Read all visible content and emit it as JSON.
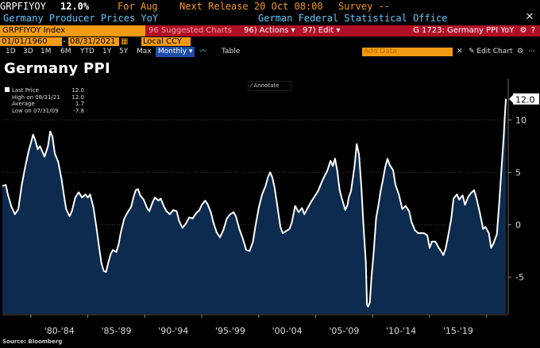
{
  "header": {
    "ticker": "GRPFIYOY",
    "last_value": "12.0%",
    "period": "For Aug",
    "next_release": "Next Release 20 Oct 08:00",
    "survey": "Survey --",
    "series_desc": "Germany Producer Prices YoY",
    "source": "German Federal Statistical Office"
  },
  "command_bar": {
    "security": "GRPFIYOY Index",
    "suggested": "96 Suggested Charts",
    "actions": "96) Actions ▾",
    "edit": "97) Edit ▾",
    "chart_id": "G 1723: Germany PPI YoY"
  },
  "date_range": {
    "start": "01/01/1960",
    "end": "08/31/2021",
    "currency": "Local CCY"
  },
  "toolbar": {
    "periods": [
      "1D",
      "3D",
      "1M",
      "6M",
      "YTD",
      "1Y",
      "5Y",
      "Max"
    ],
    "frequency": "Monthly ▾",
    "table_label": "Table",
    "add_data_placeholder": "Add Data",
    "edit_chart": "✎ Edit Chart"
  },
  "chart_title": "Germany PPI",
  "annotate_label": "Annotate",
  "legend": {
    "last_price_label": "Last Price",
    "last_price_value": "12.0",
    "high_label": "High on 08/31/21",
    "high_value": "12.0",
    "average_label": "Average",
    "average_value": "1.7",
    "low_label": "Low on 07/31/09",
    "low_value": "-7.8"
  },
  "footer": "Source: Bloomberg",
  "colors": {
    "background": "#000000",
    "area_fill": "#0d2b4f",
    "line": "#ffffff",
    "command_bar": "#b10f26",
    "accent_orange": "#f39b12",
    "header_blue": "#5ec8ff"
  },
  "chart_data": {
    "type": "area",
    "title": "Germany PPI",
    "ylim": [
      -8.5,
      13.5
    ],
    "y_ticks": [
      -5,
      0,
      5,
      10
    ],
    "x_range": [
      1977.5,
      2021.9
    ],
    "x_tick_labels": [
      {
        "label": "'80-'84",
        "x": 1982.5
      },
      {
        "label": "'85-'89",
        "x": 1987.5
      },
      {
        "label": "'90-'94",
        "x": 1992.5
      },
      {
        "label": "'95-'99",
        "x": 1997.5
      },
      {
        "label": "'00-'04",
        "x": 2002.5
      },
      {
        "label": "'05-'09",
        "x": 2007.5
      },
      {
        "label": "'10-'14",
        "x": 2012.5
      },
      {
        "label": "'15-'19",
        "x": 2017.5
      }
    ],
    "last_value_label": "12.0",
    "series": [
      {
        "points": [
          [
            1977.5,
            3.7
          ],
          [
            1977.8,
            3.8
          ],
          [
            1978.0,
            2.8
          ],
          [
            1978.3,
            1.7
          ],
          [
            1978.6,
            1.0
          ],
          [
            1978.9,
            1.5
          ],
          [
            1979.2,
            3.8
          ],
          [
            1979.5,
            5.5
          ],
          [
            1979.8,
            7.0
          ],
          [
            1980.0,
            7.8
          ],
          [
            1980.2,
            8.6
          ],
          [
            1980.4,
            8.0
          ],
          [
            1980.6,
            7.2
          ],
          [
            1980.8,
            7.5
          ],
          [
            1981.0,
            7.0
          ],
          [
            1981.2,
            6.5
          ],
          [
            1981.5,
            7.5
          ],
          [
            1981.7,
            8.9
          ],
          [
            1981.9,
            8.4
          ],
          [
            1982.1,
            6.8
          ],
          [
            1982.4,
            6.0
          ],
          [
            1982.7,
            4.3
          ],
          [
            1982.9,
            2.8
          ],
          [
            1983.1,
            1.5
          ],
          [
            1983.4,
            0.8
          ],
          [
            1983.6,
            1.3
          ],
          [
            1983.9,
            2.6
          ],
          [
            1984.2,
            3.1
          ],
          [
            1984.5,
            2.6
          ],
          [
            1984.8,
            2.9
          ],
          [
            1985.0,
            2.6
          ],
          [
            1985.2,
            2.9
          ],
          [
            1985.5,
            1.6
          ],
          [
            1985.8,
            -0.6
          ],
          [
            1986.0,
            -2.2
          ],
          [
            1986.2,
            -3.7
          ],
          [
            1986.4,
            -4.4
          ],
          [
            1986.6,
            -4.5
          ],
          [
            1986.8,
            -3.6
          ],
          [
            1987.0,
            -2.8
          ],
          [
            1987.2,
            -2.4
          ],
          [
            1987.5,
            -2.6
          ],
          [
            1987.7,
            -1.9
          ],
          [
            1987.9,
            -0.7
          ],
          [
            1988.2,
            0.6
          ],
          [
            1988.5,
            1.2
          ],
          [
            1988.8,
            1.7
          ],
          [
            1989.0,
            2.6
          ],
          [
            1989.2,
            3.3
          ],
          [
            1989.4,
            3.4
          ],
          [
            1989.6,
            2.8
          ],
          [
            1989.9,
            2.4
          ],
          [
            1990.2,
            1.6
          ],
          [
            1990.4,
            1.3
          ],
          [
            1990.7,
            2.2
          ],
          [
            1990.9,
            2.6
          ],
          [
            1991.2,
            2.3
          ],
          [
            1991.4,
            2.5
          ],
          [
            1991.7,
            1.7
          ],
          [
            1991.9,
            1.3
          ],
          [
            1992.2,
            1.0
          ],
          [
            1992.5,
            1.4
          ],
          [
            1992.8,
            1.3
          ],
          [
            1993.0,
            0.4
          ],
          [
            1993.3,
            -0.3
          ],
          [
            1993.6,
            0.1
          ],
          [
            1993.9,
            0.7
          ],
          [
            1994.2,
            0.6
          ],
          [
            1994.5,
            1.1
          ],
          [
            1994.8,
            1.4
          ],
          [
            1995.0,
            1.9
          ],
          [
            1995.3,
            2.3
          ],
          [
            1995.5,
            2.0
          ],
          [
            1995.8,
            1.2
          ],
          [
            1996.0,
            0.3
          ],
          [
            1996.3,
            -0.7
          ],
          [
            1996.6,
            -1.2
          ],
          [
            1996.9,
            -0.5
          ],
          [
            1997.2,
            0.6
          ],
          [
            1997.5,
            1.0
          ],
          [
            1997.8,
            1.2
          ],
          [
            1998.0,
            0.8
          ],
          [
            1998.3,
            -0.4
          ],
          [
            1998.6,
            -1.3
          ],
          [
            1998.9,
            -2.4
          ],
          [
            1999.2,
            -2.5
          ],
          [
            1999.5,
            -1.6
          ],
          [
            1999.7,
            -0.2
          ],
          [
            2000.0,
            1.6
          ],
          [
            2000.3,
            2.9
          ],
          [
            2000.6,
            3.7
          ],
          [
            2000.8,
            4.5
          ],
          [
            2001.0,
            5.0
          ],
          [
            2001.2,
            4.5
          ],
          [
            2001.4,
            3.5
          ],
          [
            2001.7,
            1.3
          ],
          [
            2001.9,
            -0.2
          ],
          [
            2002.1,
            -0.8
          ],
          [
            2002.4,
            -0.6
          ],
          [
            2002.7,
            -0.4
          ],
          [
            2002.9,
            0.2
          ],
          [
            2003.2,
            1.8
          ],
          [
            2003.5,
            1.2
          ],
          [
            2003.8,
            1.6
          ],
          [
            2004.0,
            1.0
          ],
          [
            2004.3,
            1.6
          ],
          [
            2004.6,
            2.2
          ],
          [
            2004.9,
            2.7
          ],
          [
            2005.2,
            3.2
          ],
          [
            2005.5,
            4.0
          ],
          [
            2005.8,
            4.7
          ],
          [
            2006.0,
            5.1
          ],
          [
            2006.3,
            6.1
          ],
          [
            2006.5,
            5.6
          ],
          [
            2006.7,
            6.3
          ],
          [
            2006.9,
            5.1
          ],
          [
            2007.1,
            3.3
          ],
          [
            2007.3,
            2.5
          ],
          [
            2007.6,
            1.4
          ],
          [
            2007.8,
            1.9
          ],
          [
            2007.9,
            2.6
          ],
          [
            2008.1,
            3.2
          ],
          [
            2008.4,
            5.5
          ],
          [
            2008.6,
            7.7
          ],
          [
            2008.8,
            6.7
          ],
          [
            2009.0,
            3.8
          ],
          [
            2009.2,
            -0.2
          ],
          [
            2009.4,
            -3.6
          ],
          [
            2009.5,
            -7.6
          ],
          [
            2009.6,
            -7.8
          ],
          [
            2009.75,
            -7.4
          ],
          [
            2009.9,
            -5.0
          ],
          [
            2010.1,
            -2.5
          ],
          [
            2010.3,
            0.6
          ],
          [
            2010.5,
            1.8
          ],
          [
            2010.7,
            3.2
          ],
          [
            2010.9,
            4.3
          ],
          [
            2011.1,
            5.5
          ],
          [
            2011.3,
            6.3
          ],
          [
            2011.5,
            5.7
          ],
          [
            2011.8,
            5.2
          ],
          [
            2012.0,
            3.8
          ],
          [
            2012.3,
            2.9
          ],
          [
            2012.6,
            1.5
          ],
          [
            2012.9,
            1.8
          ],
          [
            2013.2,
            1.3
          ],
          [
            2013.4,
            0.3
          ],
          [
            2013.7,
            -0.5
          ],
          [
            2014.0,
            -0.8
          ],
          [
            2014.3,
            -0.8
          ],
          [
            2014.5,
            -0.8
          ],
          [
            2014.8,
            -1.0
          ],
          [
            2015.0,
            -2.2
          ],
          [
            2015.2,
            -1.6
          ],
          [
            2015.5,
            -1.6
          ],
          [
            2015.8,
            -2.2
          ],
          [
            2016.0,
            -2.5
          ],
          [
            2016.2,
            -2.9
          ],
          [
            2016.4,
            -2.3
          ],
          [
            2016.6,
            -1.2
          ],
          [
            2016.9,
            0.6
          ],
          [
            2017.1,
            2.5
          ],
          [
            2017.4,
            2.9
          ],
          [
            2017.6,
            2.4
          ],
          [
            2017.9,
            2.8
          ],
          [
            2018.1,
            1.9
          ],
          [
            2018.4,
            2.7
          ],
          [
            2018.6,
            3.0
          ],
          [
            2018.9,
            3.3
          ],
          [
            2019.1,
            2.6
          ],
          [
            2019.4,
            1.2
          ],
          [
            2019.7,
            -0.4
          ],
          [
            2019.9,
            -0.2
          ],
          [
            2020.2,
            -0.8
          ],
          [
            2020.4,
            -2.2
          ],
          [
            2020.6,
            -1.8
          ],
          [
            2020.9,
            -0.9
          ],
          [
            2021.1,
            1.9
          ],
          [
            2021.3,
            5.2
          ],
          [
            2021.5,
            8.4
          ],
          [
            2021.6,
            10.4
          ],
          [
            2021.7,
            12.0
          ]
        ]
      }
    ]
  }
}
